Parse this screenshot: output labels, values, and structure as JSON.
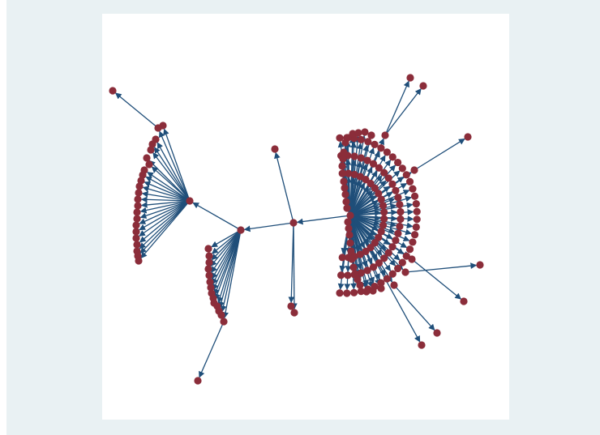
{
  "graph": {
    "type": "network",
    "edge_color": "#1f4e79",
    "node_color": "#8b2d3a",
    "directed": true
  }
}
